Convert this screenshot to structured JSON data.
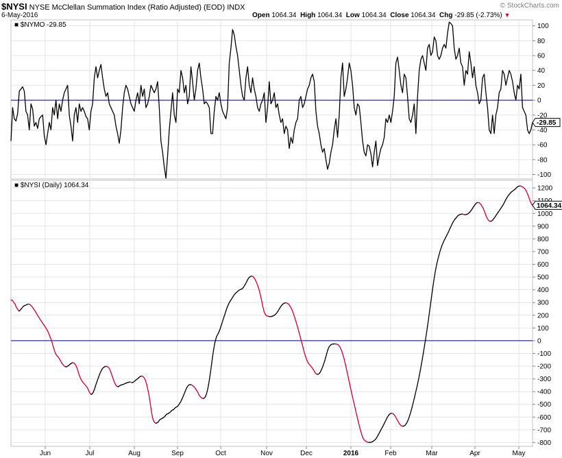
{
  "header": {
    "symbol": "$NYSI",
    "name": "NYSE McClellan Summation Index (Ratio Adjusted) (EOD)",
    "exchange": "INDX",
    "date": "6-May-2016",
    "brand": "© StockCharts.com",
    "ohlc": {
      "open_label": "Open",
      "open": "1064.34",
      "high_label": "High",
      "high": "1064.34",
      "low_label": "Low",
      "low": "1064.34",
      "close_label": "Close",
      "close": "1064.34",
      "chg_label": "Chg",
      "chg": "-29.85 (-2.73%)",
      "chg_arrow": "▼"
    }
  },
  "colors": {
    "up": "#000000",
    "down": "#cc0033",
    "zero_line": "#000080",
    "grid": "#e4e4e4",
    "frame": "#c0c0c0"
  },
  "chart_data": [
    {
      "type": "line",
      "panel": "top",
      "legend": "$NYMO -29.85",
      "last_value_label": "-29.85",
      "ylim": [
        -106,
        108
      ],
      "yticks": [
        100,
        80,
        60,
        40,
        20,
        0,
        -20,
        -40,
        -60,
        -80,
        -100
      ],
      "zero_line": 0,
      "values": [
        -55,
        -10,
        -25,
        -28,
        -18,
        12,
        15,
        18,
        12,
        -15,
        -20,
        -40,
        -5,
        -12,
        -35,
        -30,
        -38,
        -25,
        -22,
        -20,
        -48,
        -60,
        -45,
        -30,
        -40,
        -10,
        -20,
        0,
        -25,
        -5,
        -15,
        0,
        10,
        15,
        20,
        -20,
        -35,
        -55,
        -20,
        -10,
        -30,
        -5,
        -15,
        -10,
        -15,
        -22,
        -25,
        -40,
        -15,
        -5,
        30,
        45,
        30,
        40,
        48,
        30,
        15,
        5,
        10,
        -5,
        -10,
        -15,
        -20,
        -35,
        -45,
        -58,
        -40,
        -10,
        10,
        20,
        15,
        5,
        -5,
        -10,
        -15,
        0,
        10,
        -5,
        20,
        5,
        15,
        -10,
        -5,
        5,
        20,
        15,
        10,
        15,
        25,
        -10,
        -55,
        -70,
        -90,
        -105,
        -75,
        -40,
        -15,
        10,
        -20,
        -30,
        15,
        10,
        40,
        30,
        10,
        20,
        -5,
        5,
        45,
        25,
        0,
        15,
        40,
        50,
        30,
        15,
        -5,
        -2,
        -5,
        -10,
        -45,
        -45,
        -15,
        5,
        0,
        10,
        -5,
        -15,
        -20,
        -25,
        -10,
        50,
        70,
        95,
        88,
        72,
        60,
        40,
        20,
        5,
        0,
        30,
        45,
        20,
        10,
        30,
        15,
        5,
        -10,
        -15,
        -5,
        0,
        10,
        -30,
        -10,
        25,
        -5,
        0,
        10,
        -10,
        -5,
        -20,
        -30,
        -25,
        -45,
        -35,
        -40,
        -65,
        -50,
        -58,
        -40,
        -30,
        -25,
        0,
        5,
        -10,
        -5,
        5,
        15,
        20,
        30,
        35,
        25,
        -15,
        -35,
        -45,
        -60,
        -70,
        -65,
        -80,
        -93,
        -85,
        -70,
        -60,
        -40,
        -25,
        -50,
        -20,
        30,
        50,
        5,
        15,
        30,
        50,
        40,
        20,
        -10,
        -20,
        -5,
        -8,
        -30,
        -55,
        -70,
        -75,
        -60,
        -62,
        -72,
        -90,
        -70,
        -55,
        -88,
        -75,
        -65,
        -60,
        -50,
        -25,
        -30,
        -20,
        -30,
        -15,
        5,
        50,
        58,
        40,
        20,
        10,
        35,
        30,
        5,
        -25,
        -30,
        -20,
        -5,
        -45,
        5,
        40,
        55,
        60,
        50,
        40,
        70,
        75,
        60,
        65,
        85,
        80,
        60,
        55,
        60,
        70,
        75,
        70,
        90,
        105,
        103,
        100,
        70,
        55,
        60,
        70,
        50,
        45,
        20,
        40,
        35,
        65,
        50,
        30,
        45,
        20,
        10,
        -5,
        0,
        30,
        35,
        10,
        -10,
        -40,
        -45,
        -20,
        -45,
        -20,
        -10,
        10,
        15,
        40,
        35,
        20,
        30,
        40,
        35,
        25,
        10,
        0,
        20,
        15,
        35,
        -10,
        -15,
        -20,
        -40,
        -45,
        -40,
        -30
      ]
    },
    {
      "type": "line",
      "panel": "bottom",
      "legend": "$NYSI (Daily) 1064.34",
      "last_value_label": "1064.34",
      "ylim": [
        -830,
        1260
      ],
      "yticks": [
        1200,
        1100,
        1000,
        900,
        800,
        700,
        600,
        500,
        400,
        300,
        200,
        100,
        0,
        -100,
        -200,
        -300,
        -400,
        -500,
        -600,
        -700,
        -800
      ],
      "zero_line": 0,
      "x_tick_labels": [
        "Jun",
        "Jul",
        "Aug",
        "Sep",
        "Oct",
        "Nov",
        "Dec",
        "2016",
        "Feb",
        "Mar",
        "Apr",
        "May"
      ],
      "values": [
        320,
        318,
        310,
        298,
        288,
        268,
        252,
        240,
        232,
        240,
        250,
        260,
        270,
        275,
        278,
        282,
        285,
        288,
        286,
        280,
        272,
        262,
        250,
        238,
        226,
        212,
        198,
        185,
        172,
        160,
        148,
        135,
        125,
        112,
        100,
        85,
        70,
        52,
        30,
        10,
        -15,
        -45,
        -70,
        -95,
        -110,
        -120,
        -128,
        -140,
        -155,
        -170,
        -182,
        -192,
        -200,
        -205,
        -205,
        -200,
        -195,
        -188,
        -182,
        -176,
        -172,
        -175,
        -182,
        -192,
        -210,
        -235,
        -262,
        -285,
        -302,
        -316,
        -328,
        -336,
        -346,
        -356,
        -366,
        -382,
        -400,
        -415,
        -422,
        -418,
        -405,
        -385,
        -360,
        -335,
        -312,
        -290,
        -268,
        -248,
        -232,
        -218,
        -210,
        -205,
        -202,
        -202,
        -205,
        -212,
        -225,
        -245,
        -268,
        -292,
        -315,
        -335,
        -350,
        -358,
        -362,
        -358,
        -352,
        -348,
        -346,
        -344,
        -340,
        -336,
        -333,
        -330,
        -327,
        -325,
        -325,
        -328,
        -330,
        -325,
        -320,
        -312,
        -305,
        -300,
        -292,
        -285,
        -280,
        -278,
        -280,
        -287,
        -298,
        -318,
        -345,
        -382,
        -420,
        -470,
        -525,
        -580,
        -615,
        -635,
        -645,
        -648,
        -645,
        -640,
        -628,
        -618,
        -615,
        -610,
        -605,
        -600,
        -590,
        -580,
        -575,
        -572,
        -565,
        -560,
        -550,
        -545,
        -542,
        -532,
        -525,
        -520,
        -515,
        -505,
        -492,
        -480,
        -462,
        -445,
        -425,
        -405,
        -385,
        -368,
        -355,
        -348,
        -345,
        -345,
        -350,
        -355,
        -362,
        -372,
        -385,
        -398,
        -412,
        -428,
        -440,
        -448,
        -452,
        -454,
        -450,
        -440,
        -420,
        -390,
        -350,
        -300,
        -245,
        -185,
        -125,
        -70,
        -25,
        10,
        35,
        50,
        65,
        85,
        110,
        135,
        160,
        185,
        210,
        235,
        258,
        278,
        296,
        310,
        322,
        335,
        348,
        360,
        370,
        378,
        385,
        392,
        398,
        402,
        405,
        410,
        420,
        432,
        446,
        462,
        478,
        492,
        500,
        505,
        508,
        505,
        498,
        486,
        470,
        452,
        430,
        405,
        375,
        340,
        302,
        262,
        230,
        210,
        200,
        195,
        192,
        190,
        190,
        190,
        192,
        196,
        200,
        206,
        215,
        225,
        238,
        252,
        265,
        276,
        285,
        292,
        296,
        298,
        296,
        292,
        286,
        276,
        262,
        246,
        226,
        202,
        178,
        152,
        124,
        96,
        66,
        36,
        5,
        -25,
        -55,
        -88,
        -115,
        -140,
        -160,
        -175,
        -185,
        -195,
        -205,
        -215,
        -228,
        -242,
        -255,
        -262,
        -265,
        -262,
        -255,
        -242,
        -225,
        -205,
        -182,
        -158,
        -130,
        -100,
        -72,
        -52,
        -40,
        -32,
        -28,
        -26,
        -25,
        -25,
        -26,
        -28,
        -32,
        -40,
        -52,
        -70,
        -92,
        -118,
        -148,
        -182,
        -218,
        -255,
        -292,
        -330,
        -368,
        -405,
        -440,
        -475,
        -510,
        -545,
        -580,
        -615,
        -648,
        -680,
        -710,
        -738,
        -760,
        -775,
        -785,
        -790,
        -795,
        -798,
        -800,
        -800,
        -798,
        -795,
        -790,
        -785,
        -778,
        -768,
        -755,
        -740,
        -725,
        -710,
        -695,
        -680,
        -665,
        -648,
        -632,
        -616,
        -600,
        -588,
        -578,
        -572,
        -570,
        -572,
        -578,
        -588,
        -600,
        -615,
        -630,
        -645,
        -656,
        -665,
        -670,
        -672,
        -670,
        -665,
        -655,
        -642,
        -625,
        -602,
        -578,
        -550,
        -520,
        -488,
        -455,
        -420,
        -385,
        -350,
        -312,
        -272,
        -230,
        -185,
        -138,
        -90,
        -40,
        10,
        62,
        118,
        176,
        235,
        295,
        355,
        415,
        470,
        520,
        565,
        605,
        640,
        670,
        700,
        725,
        748,
        768,
        786,
        802,
        818,
        834,
        850,
        868,
        886,
        904,
        920,
        935,
        948,
        958,
        968,
        978,
        986,
        990,
        992,
        995,
        995,
        992,
        990,
        990,
        992,
        996,
        1002,
        1010,
        1020,
        1032,
        1044,
        1056,
        1068,
        1078,
        1084,
        1086,
        1084,
        1078,
        1068,
        1055,
        1040,
        1022,
        1000,
        978,
        960,
        948,
        940,
        938,
        940,
        945,
        955,
        966,
        978,
        990,
        1002,
        1014,
        1026,
        1038,
        1050,
        1062,
        1076,
        1092,
        1108,
        1122,
        1135,
        1146,
        1156,
        1165,
        1172,
        1178,
        1184,
        1190,
        1198,
        1206,
        1212,
        1215,
        1216,
        1214,
        1210,
        1205,
        1198,
        1188,
        1174,
        1156,
        1136,
        1114,
        1092,
        1074,
        1064
      ]
    }
  ]
}
